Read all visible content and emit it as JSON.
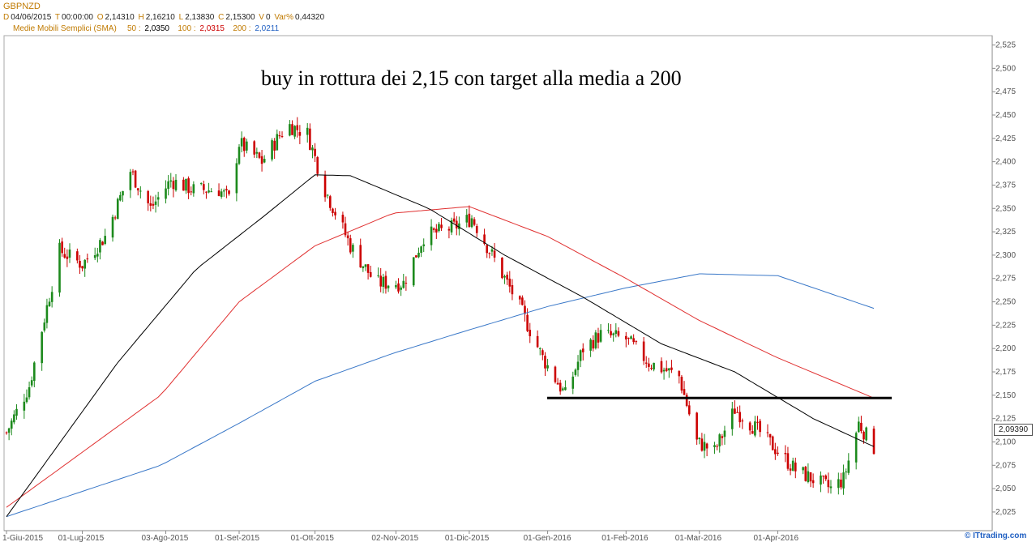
{
  "header": {
    "symbol": "GBPNZD",
    "date_key": "D",
    "date": "04/06/2015",
    "time_key": "T",
    "time": "00:00:00",
    "open_key": "O",
    "open": "2,14310",
    "high_key": "H",
    "high": "2,16210",
    "low_key": "L",
    "low": "2,13830",
    "close_key": "C",
    "close": "2,15300",
    "volume_key": "V",
    "volume": "0",
    "var_key": "Var%",
    "var": "0,44320"
  },
  "sma_legend": {
    "label": "Medie Mobili Semplici (SMA)",
    "p50": "50 :",
    "v50": "2,0350",
    "p100": "100 :",
    "v100": "2,0315",
    "p200": "200 :",
    "v200": "2,0211"
  },
  "annotation": "buy in rottura dei 2,15 con target alla media a 200",
  "last_price": "2,09390",
  "brand": "© ITtrading.com",
  "chart_data": {
    "type": "candlestick",
    "y_ticks": [
      "2,025",
      "2,050",
      "2,075",
      "2,100",
      "2,125",
      "2,150",
      "2,175",
      "2,200",
      "2,225",
      "2,250",
      "2,275",
      "2,300",
      "2,325",
      "2,350",
      "2,375",
      "2,400",
      "2,425",
      "2,450",
      "2,475",
      "2,500",
      "2,525"
    ],
    "x_ticks": [
      "1-Giu-2015",
      "01-Lug-2015",
      "03-Ago-2015",
      "01-Set-2015",
      "01-Ott-2015",
      "02-Nov-2015",
      "01-Dic-2015",
      "01-Gen-2016",
      "01-Feb-2016",
      "01-Mar-2016",
      "01-Apr-2016"
    ],
    "ylim": [
      2.005,
      2.535
    ],
    "colors": {
      "up": "#1c8a1c",
      "down": "#cc0000",
      "sma50": "#000000",
      "sma100": "#e03030",
      "sma200": "#3a78c8",
      "support": "#000000"
    },
    "support_level": 2.147,
    "close_anchors": [
      [
        "2015-06-01",
        2.11
      ],
      [
        "2015-06-10",
        2.16
      ],
      [
        "2015-06-22",
        2.305
      ],
      [
        "2015-07-01",
        2.29
      ],
      [
        "2015-07-10",
        2.32
      ],
      [
        "2015-07-20",
        2.39
      ],
      [
        "2015-07-28",
        2.35
      ],
      [
        "2015-08-05",
        2.38
      ],
      [
        "2015-08-14",
        2.37
      ],
      [
        "2015-08-24",
        2.37
      ],
      [
        "2015-08-28",
        2.36
      ],
      [
        "2015-09-01",
        2.42
      ],
      [
        "2015-09-10",
        2.4
      ],
      [
        "2015-09-20",
        2.44
      ],
      [
        "2015-09-28",
        2.43
      ],
      [
        "2015-10-05",
        2.37
      ],
      [
        "2015-10-15",
        2.31
      ],
      [
        "2015-10-25",
        2.27
      ],
      [
        "2015-11-05",
        2.27
      ],
      [
        "2015-11-13",
        2.32
      ],
      [
        "2015-11-25",
        2.33
      ],
      [
        "2015-12-02",
        2.34
      ],
      [
        "2015-12-10",
        2.3
      ],
      [
        "2015-12-20",
        2.25
      ],
      [
        "2015-12-30",
        2.19
      ],
      [
        "2016-01-08",
        2.15
      ],
      [
        "2016-01-15",
        2.2
      ],
      [
        "2016-01-22",
        2.215
      ],
      [
        "2016-02-01",
        2.21
      ],
      [
        "2016-02-10",
        2.185
      ],
      [
        "2016-02-22",
        2.17
      ],
      [
        "2016-02-29",
        2.1
      ],
      [
        "2016-03-07",
        2.09
      ],
      [
        "2016-03-15",
        2.135
      ],
      [
        "2016-03-25",
        2.11
      ],
      [
        "2016-04-01",
        2.09
      ],
      [
        "2016-04-08",
        2.07
      ],
      [
        "2016-04-15",
        2.06
      ],
      [
        "2016-04-22",
        2.05
      ],
      [
        "2016-04-27",
        2.06
      ],
      [
        "2016-05-03",
        2.12
      ],
      [
        "2016-05-09",
        2.094
      ]
    ],
    "sma50_anchors": [
      [
        "2015-06-01",
        2.02
      ],
      [
        "2015-07-15",
        2.185
      ],
      [
        "2015-08-15",
        2.285
      ],
      [
        "2015-09-10",
        2.34
      ],
      [
        "2015-10-01",
        2.386
      ],
      [
        "2015-10-15",
        2.385
      ],
      [
        "2015-11-15",
        2.35
      ],
      [
        "2015-12-15",
        2.3
      ],
      [
        "2016-01-15",
        2.255
      ],
      [
        "2016-02-15",
        2.205
      ],
      [
        "2016-03-15",
        2.175
      ],
      [
        "2016-04-15",
        2.125
      ],
      [
        "2016-05-09",
        2.095
      ]
    ],
    "sma100_anchors": [
      [
        "2015-06-01",
        2.03
      ],
      [
        "2015-08-01",
        2.15
      ],
      [
        "2015-09-01",
        2.25
      ],
      [
        "2015-10-01",
        2.31
      ],
      [
        "2015-11-01",
        2.345
      ],
      [
        "2015-12-01",
        2.352
      ],
      [
        "2016-01-01",
        2.32
      ],
      [
        "2016-02-01",
        2.275
      ],
      [
        "2016-03-01",
        2.23
      ],
      [
        "2016-04-01",
        2.19
      ],
      [
        "2016-05-09",
        2.147
      ]
    ],
    "sma200_anchors": [
      [
        "2015-06-01",
        2.02
      ],
      [
        "2015-08-01",
        2.075
      ],
      [
        "2015-09-01",
        2.12
      ],
      [
        "2015-10-01",
        2.165
      ],
      [
        "2015-11-01",
        2.195
      ],
      [
        "2015-12-01",
        2.22
      ],
      [
        "2016-01-01",
        2.245
      ],
      [
        "2016-02-01",
        2.265
      ],
      [
        "2016-03-01",
        2.28
      ],
      [
        "2016-04-01",
        2.278
      ],
      [
        "2016-05-09",
        2.243
      ]
    ]
  }
}
